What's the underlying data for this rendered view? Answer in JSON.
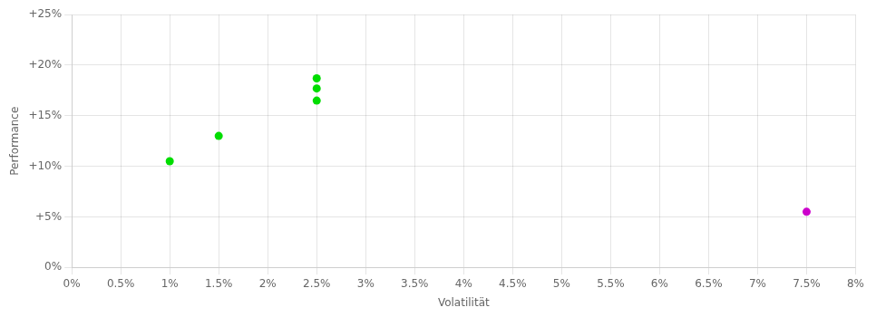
{
  "chart_data": {
    "type": "scatter",
    "xlabel": "Volatilität",
    "ylabel": "Performance",
    "series": [
      {
        "color": "#00dd00",
        "x": [
          1.0,
          1.5,
          2.5,
          2.5,
          2.5
        ],
        "values": [
          10.5,
          13.0,
          18.7,
          17.7,
          16.5
        ]
      },
      {
        "color": "#cc00cc",
        "x": [
          7.5
        ],
        "values": [
          5.5
        ]
      }
    ],
    "xlim": [
      0.0,
      8.0
    ],
    "ylim": [
      0.0,
      25.0
    ],
    "xticks": [
      {
        "value": 0.0,
        "label": "0%"
      },
      {
        "value": 0.5,
        "label": "0.5%"
      },
      {
        "value": 1.0,
        "label": "1%"
      },
      {
        "value": 1.5,
        "label": "1.5%"
      },
      {
        "value": 2.0,
        "label": "2%"
      },
      {
        "value": 2.5,
        "label": "2.5%"
      },
      {
        "value": 3.0,
        "label": "3%"
      },
      {
        "value": 3.5,
        "label": "3.5%"
      },
      {
        "value": 4.0,
        "label": "4%"
      },
      {
        "value": 4.5,
        "label": "4.5%"
      },
      {
        "value": 5.0,
        "label": "5%"
      },
      {
        "value": 5.5,
        "label": "5.5%"
      },
      {
        "value": 6.0,
        "label": "6%"
      },
      {
        "value": 6.5,
        "label": "6.5%"
      },
      {
        "value": 7.0,
        "label": "7%"
      },
      {
        "value": 7.5,
        "label": "7.5%"
      },
      {
        "value": 8.0,
        "label": "8%"
      }
    ],
    "yticks": [
      {
        "value": 0,
        "label": "0%"
      },
      {
        "value": 5,
        "label": "+5%"
      },
      {
        "value": 10,
        "label": "+10%"
      },
      {
        "value": 15,
        "label": "+15%"
      },
      {
        "value": 20,
        "label": "+20%"
      },
      {
        "value": 25,
        "label": "+25%"
      }
    ],
    "grid": true
  }
}
